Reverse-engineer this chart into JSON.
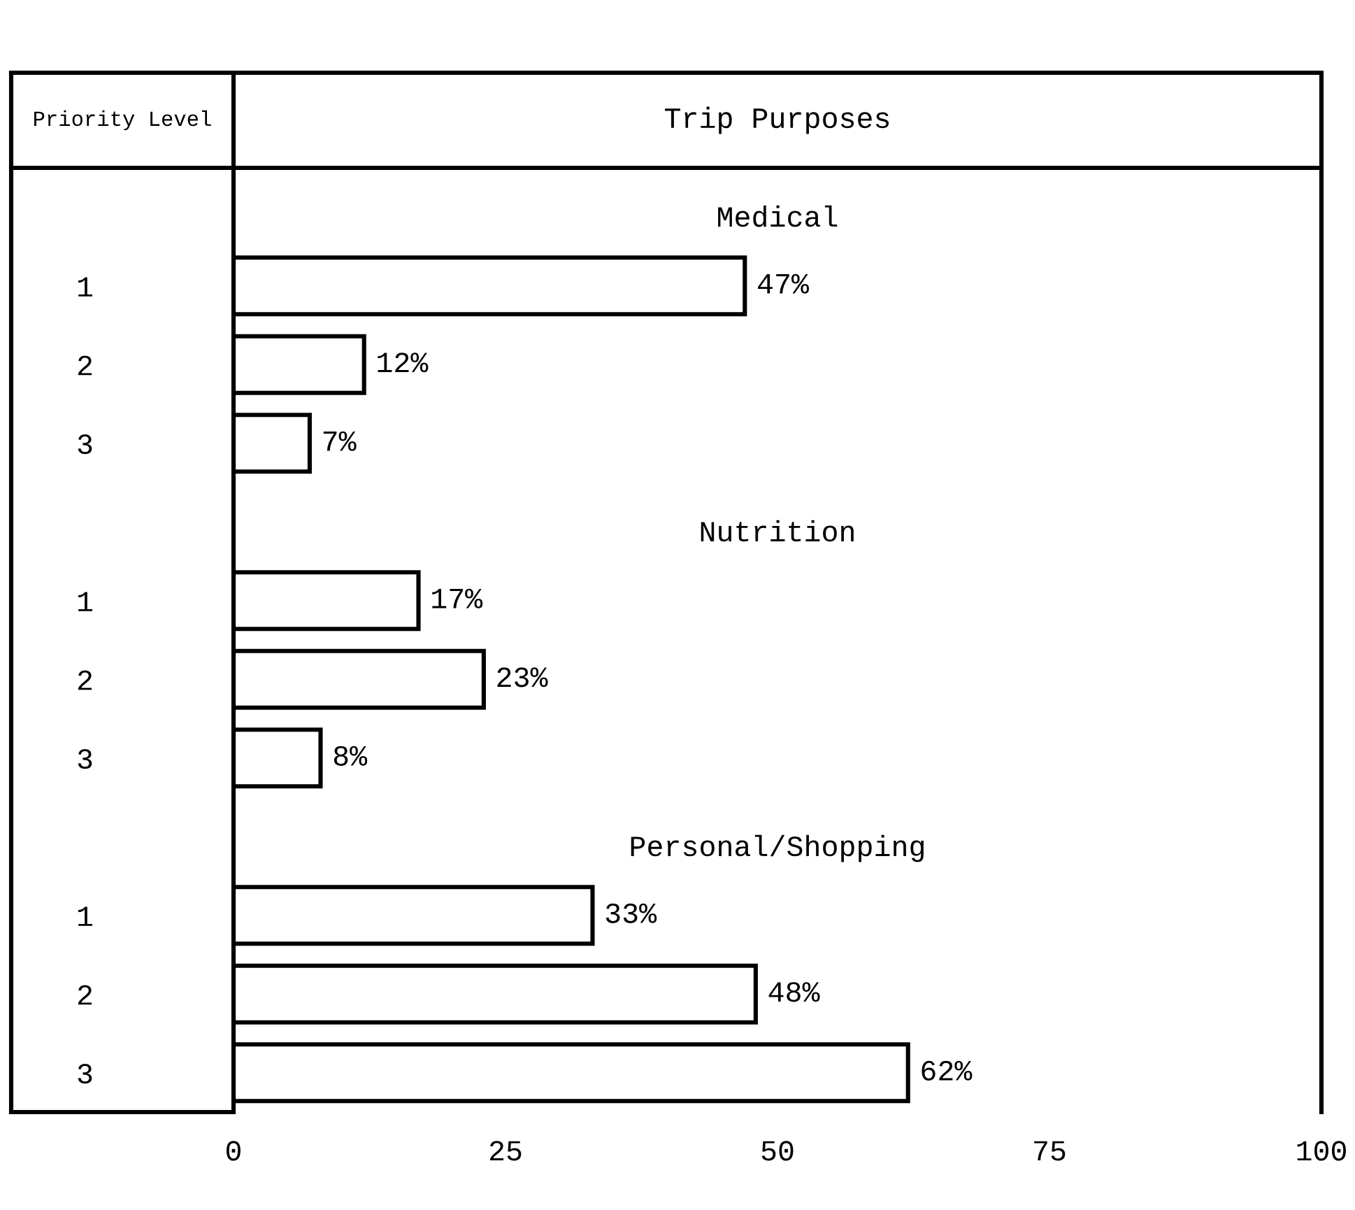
{
  "chart_data": {
    "type": "bar",
    "orientation": "horizontal",
    "title": "Trip Purposes",
    "ylabel": "Priority Level",
    "annotations": [
      "Medical",
      "Nutrition",
      "Personal/Shopping"
    ],
    "categories": [
      null,
      "1",
      "2",
      "3",
      null,
      "1",
      "2",
      "3",
      null,
      "1",
      "2",
      "3"
    ],
    "values": [
      null,
      47,
      12,
      7,
      null,
      17,
      23,
      8,
      null,
      33,
      48,
      62
    ],
    "value_labels": [
      null,
      "47%",
      "12%",
      "7%",
      null,
      "17%",
      "23%",
      "8%",
      null,
      "33%",
      "48%",
      "62%"
    ],
    "color": "#ffffff",
    "xlim": [
      0,
      100
    ],
    "xticks": [
      0,
      25,
      50,
      75,
      100
    ]
  }
}
